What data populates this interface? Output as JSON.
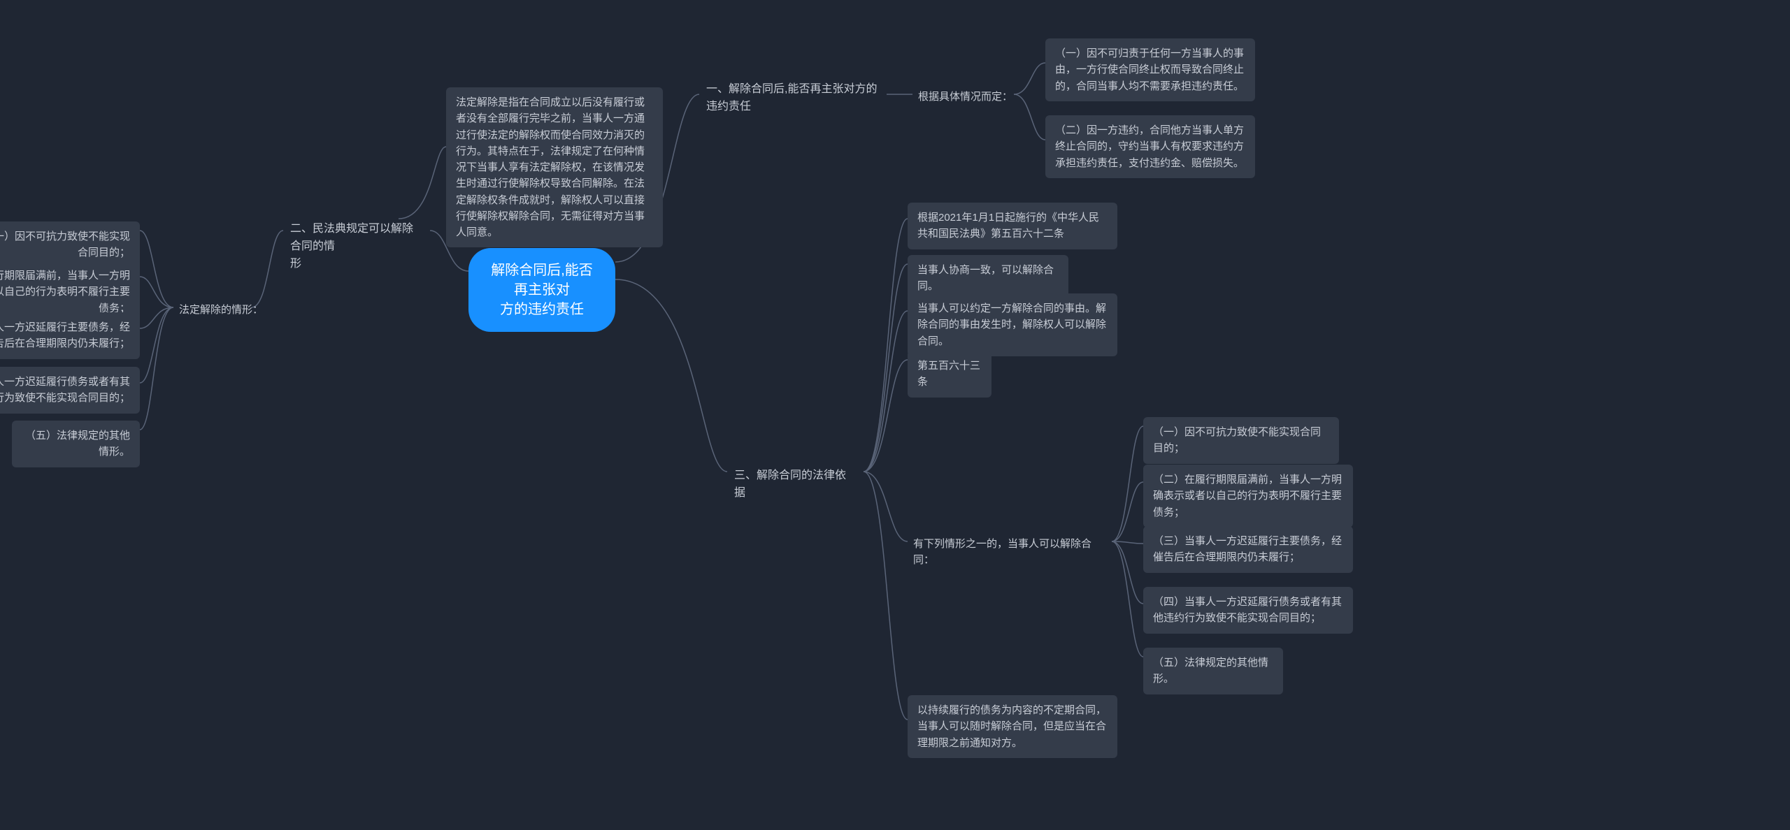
{
  "colors": {
    "bg": "#1f2633",
    "node_bg": "#343c4a",
    "root_bg": "#1890ff",
    "text": "#c8cdd6",
    "root_text": "#ffffff",
    "connector": "#5a6478"
  },
  "root": {
    "text": "解除合同后,能否再主张对\n方的违约责任"
  },
  "branch1": {
    "label": "一、解除合同后,能否再主张对方的\n违约责任",
    "sub_label": "根据具体情况而定：",
    "items": [
      "（一）因不可归责于任何一方当事人的事由，一方行使合同终止权而导致合同终止的，合同当事人均不需要承担违约责任。",
      "（二）因一方违约，合同他方当事人单方终止合同的，守约当事人有权要求违约方承担违约责任，支付违约金、赔偿损失。"
    ]
  },
  "branch2": {
    "label": "二、民法典规定可以解除合同的情\n形",
    "desc": "法定解除是指在合同成立以后没有履行或者没有全部履行完毕之前，当事人一方通过行使法定的解除权而使合同效力消灭的行为。其特点在于，法律规定了在何种情况下当事人享有法定解除权，在该情况发生时通过行使解除权导致合同解除。在法定解除权条件成就时，解除权人可以直接行使解除权解除合同，无需征得对方当事人同意。",
    "sub_label": "法定解除的情形：",
    "items": [
      "（一）因不可抗力致使不能实现合同目的；",
      "（二）在履行期限届满前，当事人一方明确表示或者以自己的行为表明不履行主要债务；",
      "（三）当事人一方迟延履行主要债务，经催告后在合理期限内仍未履行；",
      "（四）当事人一方迟延履行债务或者有其他违约行为致使不能实现合同目的；",
      "（五）法律规定的其他情形。"
    ]
  },
  "branch3": {
    "label": "三、解除合同的法律依据",
    "items_top": [
      "根据2021年1月1日起施行的《中华人民共和国民法典》第五百六十二条",
      "当事人协商一致，可以解除合同。",
      "当事人可以约定一方解除合同的事由。解除合同的事由发生时，解除权人可以解除合同。",
      "第五百六十三条"
    ],
    "sub_label": "有下列情形之一的，当事人可以解除合同：",
    "sub_items": [
      "（一）因不可抗力致使不能实现合同目的；",
      "（二）在履行期限届满前，当事人一方明确表示或者以自己的行为表明不履行主要债务；",
      "（三）当事人一方迟延履行主要债务，经催告后在合理期限内仍未履行；",
      "（四）当事人一方迟延履行债务或者有其他违约行为致使不能实现合同目的；",
      "（五）法律规定的其他情形。"
    ],
    "last": "以持续履行的债务为内容的不定期合同，当事人可以随时解除合同，但是应当在合理期限之前通知对方。"
  }
}
